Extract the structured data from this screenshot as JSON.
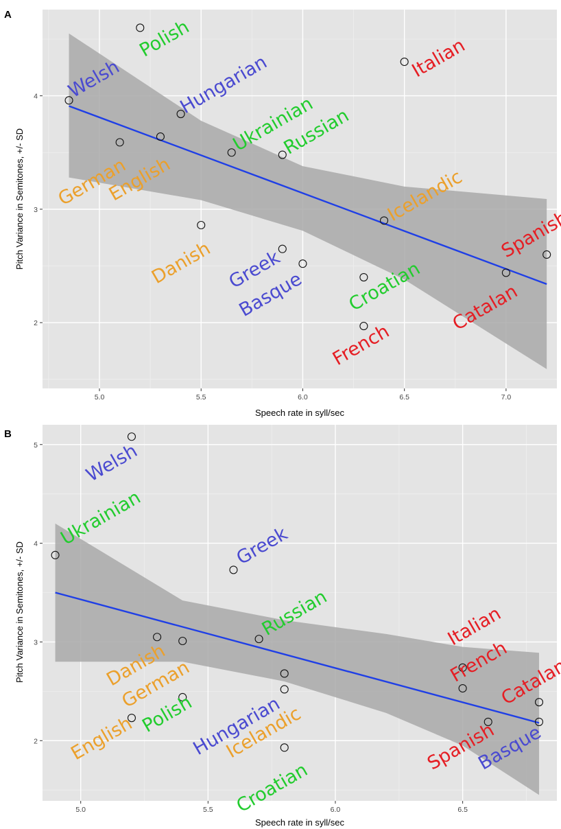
{
  "colors": {
    "panel_bg": "#e4e4e4",
    "grid_major": "#ffffff",
    "grid_minor": "#efefef",
    "ribbon": "#a9a9a9",
    "fit_line": "#1f3fe6",
    "point_stroke": "#111111",
    "green": "#22cc2e",
    "orange": "#eba02c",
    "blue": "#4a4ad0",
    "red": "#e51e24"
  },
  "chart_data": [
    {
      "panel_label": "A",
      "type": "scatter",
      "xlabel": "Speech rate in syll/sec",
      "ylabel": "Pitch Variance in Semitones, +/- SD",
      "xlim": [
        4.72,
        7.25
      ],
      "ylim": [
        1.42,
        4.76
      ],
      "xticks": [
        5.0,
        5.5,
        6.0,
        6.5,
        7.0
      ],
      "xtick_labels": [
        "5.0",
        "5.5",
        "6.0",
        "6.5",
        "7.0"
      ],
      "yticks": [
        2,
        3,
        4
      ],
      "ytick_labels": [
        "2",
        "3",
        "4"
      ],
      "points": [
        {
          "x": 4.85,
          "y": 3.96
        },
        {
          "x": 5.2,
          "y": 4.6
        },
        {
          "x": 5.1,
          "y": 3.59
        },
        {
          "x": 5.3,
          "y": 3.64
        },
        {
          "x": 5.4,
          "y": 3.84
        },
        {
          "x": 5.5,
          "y": 2.86
        },
        {
          "x": 5.65,
          "y": 3.5
        },
        {
          "x": 5.9,
          "y": 3.48
        },
        {
          "x": 5.9,
          "y": 2.65
        },
        {
          "x": 6.0,
          "y": 2.52
        },
        {
          "x": 6.3,
          "y": 2.4
        },
        {
          "x": 6.3,
          "y": 1.97
        },
        {
          "x": 6.4,
          "y": 2.9
        },
        {
          "x": 6.5,
          "y": 4.3
        },
        {
          "x": 7.0,
          "y": 2.44
        },
        {
          "x": 7.2,
          "y": 2.6
        }
      ],
      "fit_line": {
        "x": [
          4.85,
          7.2
        ],
        "y": [
          3.91,
          2.34
        ]
      },
      "ribbon": {
        "x": [
          4.85,
          5.5,
          6.0,
          6.5,
          7.2
        ],
        "upper": [
          4.55,
          3.78,
          3.38,
          3.2,
          3.09
        ],
        "lower": [
          3.28,
          3.08,
          2.81,
          2.38,
          1.59
        ]
      },
      "labels": [
        {
          "text": "Welsh",
          "x": 4.87,
          "y": 3.98,
          "color": "blue"
        },
        {
          "text": "Polish",
          "x": 5.22,
          "y": 4.34,
          "color": "green"
        },
        {
          "text": "Hungarian",
          "x": 5.42,
          "y": 3.84,
          "color": "blue"
        },
        {
          "text": "German",
          "x": 4.82,
          "y": 3.03,
          "color": "orange"
        },
        {
          "text": "English",
          "x": 5.07,
          "y": 3.07,
          "color": "orange"
        },
        {
          "text": "Ukrainian",
          "x": 5.68,
          "y": 3.51,
          "color": "green"
        },
        {
          "text": "Russian",
          "x": 5.93,
          "y": 3.48,
          "color": "green"
        },
        {
          "text": "Icelandic",
          "x": 6.44,
          "y": 2.89,
          "color": "orange"
        },
        {
          "text": "Italian",
          "x": 6.56,
          "y": 4.16,
          "color": "red"
        },
        {
          "text": "Danish",
          "x": 5.28,
          "y": 2.34,
          "color": "orange"
        },
        {
          "text": "Greek",
          "x": 5.66,
          "y": 2.3,
          "color": "blue"
        },
        {
          "text": "Basque",
          "x": 5.71,
          "y": 2.05,
          "color": "blue"
        },
        {
          "text": "Croatian",
          "x": 6.25,
          "y": 2.1,
          "color": "green"
        },
        {
          "text": "French",
          "x": 6.17,
          "y": 1.62,
          "color": "red"
        },
        {
          "text": "Catalan",
          "x": 6.76,
          "y": 1.93,
          "color": "red"
        },
        {
          "text": "Spanish",
          "x": 7.0,
          "y": 2.57,
          "color": "red"
        }
      ]
    },
    {
      "panel_label": "B",
      "type": "scatter",
      "xlabel": "Speech rate in syll/sec",
      "ylabel": "Pitch Variance in Semitones, +/- SD",
      "xlim": [
        4.85,
        6.87
      ],
      "ylim": [
        1.39,
        5.2
      ],
      "xticks": [
        5.0,
        5.5,
        6.0,
        6.5
      ],
      "xtick_labels": [
        "5.0",
        "5.5",
        "6.0",
        "6.5"
      ],
      "yticks": [
        2,
        3,
        4,
        5
      ],
      "ytick_labels": [
        "2",
        "3",
        "4",
        "5"
      ],
      "points": [
        {
          "x": 5.2,
          "y": 5.08
        },
        {
          "x": 4.9,
          "y": 3.88
        },
        {
          "x": 5.6,
          "y": 3.73
        },
        {
          "x": 5.3,
          "y": 3.05
        },
        {
          "x": 5.4,
          "y": 3.01
        },
        {
          "x": 5.7,
          "y": 3.03
        },
        {
          "x": 5.8,
          "y": 2.68
        },
        {
          "x": 5.8,
          "y": 2.52
        },
        {
          "x": 5.4,
          "y": 2.44
        },
        {
          "x": 5.2,
          "y": 2.23
        },
        {
          "x": 5.8,
          "y": 1.93
        },
        {
          "x": 6.5,
          "y": 2.74
        },
        {
          "x": 6.5,
          "y": 2.53
        },
        {
          "x": 6.6,
          "y": 2.19
        },
        {
          "x": 6.8,
          "y": 2.39
        },
        {
          "x": 6.8,
          "y": 2.19
        }
      ],
      "fit_line": {
        "x": [
          4.9,
          6.8
        ],
        "y": [
          3.5,
          2.18
        ]
      },
      "ribbon": {
        "x": [
          4.9,
          5.4,
          5.8,
          6.2,
          6.5,
          6.8
        ],
        "upper": [
          4.2,
          3.42,
          3.22,
          3.08,
          2.95,
          2.89
        ],
        "lower": [
          2.8,
          2.8,
          2.6,
          2.28,
          1.95,
          1.45
        ]
      },
      "labels": [
        {
          "text": "Welsh",
          "x": 5.04,
          "y": 4.62,
          "color": "blue"
        },
        {
          "text": "Ukrainian",
          "x": 4.94,
          "y": 3.98,
          "color": "green"
        },
        {
          "text": "Greek",
          "x": 5.63,
          "y": 3.78,
          "color": "blue"
        },
        {
          "text": "Russian",
          "x": 5.73,
          "y": 3.06,
          "color": "green"
        },
        {
          "text": "Danish",
          "x": 5.12,
          "y": 2.55,
          "color": "orange"
        },
        {
          "text": "German",
          "x": 5.18,
          "y": 2.33,
          "color": "orange"
        },
        {
          "text": "English",
          "x": 4.98,
          "y": 1.8,
          "color": "orange"
        },
        {
          "text": "Polish",
          "x": 5.26,
          "y": 2.08,
          "color": "green"
        },
        {
          "text": "Hungarian",
          "x": 5.46,
          "y": 1.85,
          "color": "blue"
        },
        {
          "text": "Icelandic",
          "x": 5.59,
          "y": 1.82,
          "color": "orange"
        },
        {
          "text": "Croatian",
          "x": 5.63,
          "y": 1.27,
          "color": "green"
        },
        {
          "text": "Italian",
          "x": 6.46,
          "y": 2.96,
          "color": "red"
        },
        {
          "text": "French",
          "x": 6.47,
          "y": 2.59,
          "color": "red"
        },
        {
          "text": "Catalan",
          "x": 6.67,
          "y": 2.36,
          "color": "red"
        },
        {
          "text": "Spanish",
          "x": 6.38,
          "y": 1.7,
          "color": "red"
        },
        {
          "text": "Basque",
          "x": 6.58,
          "y": 1.7,
          "color": "blue"
        }
      ]
    }
  ]
}
